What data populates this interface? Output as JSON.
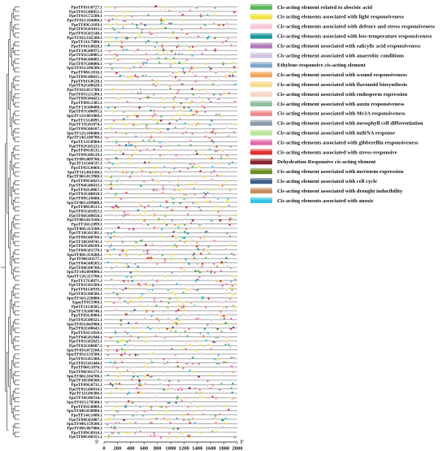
{
  "genes": [
    "PpeTF01G0727.1",
    "PpeTF01G08851.1",
    "PpeTF01G72500.1",
    "PpeTF01G104000.1",
    "PpeTF09G1109.1",
    "PpeTF03G03413.1",
    "PpeTF03G01548.1",
    "PpeTF01G145500.1",
    "PpeTF11G7800.1",
    "PpeTF01G8028.1",
    "PpeTF14G00975.1",
    "PpeTF05G20005.1",
    "PpeTF04G00005.1",
    "PpeTF07G00006.1",
    "SpuTF01G186500.1",
    "PpeTF08G1816.1",
    "PpeTF09G00015.1",
    "PpeTF01G0520.1",
    "PpeTF02G00620.1",
    "PpeTF01G051700.1",
    "PpeTF01G21200.1",
    "PpeTF09G04423.1",
    "PpeTF09G1385.1",
    "PpeTF13G00088.1",
    "PpeTF07G00095.1",
    "SpuTF12G081000.1",
    "PpeTF15G0095.1",
    "PpeTF15G01074.1",
    "PpeTF09G00107.1",
    "SpuTF12G108400.1",
    "PpeTF14G108700.1",
    "PpeTF12G0904.1",
    "PpeTF02G05223.1",
    "PpeTF09G0131.1",
    "PpeTF09G00129.1",
    "SpuTF09G009700.1",
    "PpeTF11G04537.1",
    "PpeTF05G0469.1",
    "SpuTF11G041100.1",
    "PpeTF06G013900.1",
    "PpeTF09G0423.1",
    "PpeTF04G00433.1",
    "PpeTF02G0067.1",
    "PpeTF03G00018.1",
    "PpeTF09G18600.1",
    "SpuTF06G189800.1",
    "PpeTF08G0513.1",
    "PpeTF05G01853.1",
    "PpeTF06G00658.1",
    "PpeTF06G013100.1",
    "PpeTF16G1099.1",
    "SpuTF06G113500.1",
    "PpeTF18G01301.1",
    "PpeTF06G00760.1",
    "PpeTF18G04741.1",
    "PpeTF03G00189.1",
    "PpeTF08G01578.1",
    "SpuTF06G114200.1",
    "PpeTF04G01177.1",
    "PpeTF04G00503.1",
    "PpeTF04G00708.1",
    "SpuTF14G094800.1",
    "SpuTF13G115700.1",
    "PpeTF17G0971.1",
    "PpeTF01G01204.1",
    "PpeTF01G0939.1",
    "PpeTF05G00586.1",
    "SpuTF16G220800.1",
    "SapuTF015900.1",
    "PpeTF11G0505.1",
    "PpeTF13G00740.1",
    "PpeTF03G0904.1",
    "PpeTF02G00321.1",
    "SpuTF05G043900.1",
    "PpeTF02G00643.1",
    "PpeTF03G1050.1",
    "PpeTF04G01840.1",
    "PpeTF05G02025.1",
    "PpeTF02G00687.1",
    "SpuTF03G072100.1",
    "SpuTF05G133500.1",
    "PpeTF01G01308.1",
    "PpeTF01G01444.1",
    "PpeTF06G1076.1",
    "PpeTF06G01271.1",
    "SpuTF06G104700.1",
    "PpeTF16G08500.1",
    "PpeTF09G0731.1",
    "PpeTF01G06814.1",
    "PpeTF11G06306.1",
    "SpuTF10G00334.1",
    "SpuTF01G178500.1",
    "PpeTF03G0809.1",
    "SpuTF04G038800.1",
    "PpeTF14G1680.1",
    "PpeTF04G02087.1",
    "SpuTF04G159500.1",
    "PpeTF09G007000.1",
    "PpeTF09G0914.1",
    "PpeTF08G00355.1"
  ],
  "axis": {
    "ticks": [
      "0",
      "200",
      "400",
      "600",
      "800",
      "1000",
      "1200",
      "1400",
      "1600",
      "1800",
      "2000"
    ],
    "start_label": "5'",
    "end_label": "3'",
    "max": 2000
  },
  "legend": [
    {
      "pre": "",
      "it": "Cis",
      "post": "-acting element related to abscisic acid",
      "color": "#5cb85c"
    },
    {
      "pre": "",
      "it": "Cis",
      "post": "-acting elements associated with light responsiveness",
      "color": "#f0e442"
    },
    {
      "pre": "",
      "it": "Cis",
      "post": "-acting elements associated with defence and stress responsiveness",
      "color": "#f7c6da"
    },
    {
      "pre": "",
      "it": "Cis",
      "post": "-acting elements associated with low-temperature responsiveness",
      "color": "#1a9a9a"
    },
    {
      "pre": "",
      "it": "Cis",
      "post": "-acting element associated with salicylic acid responsiveness",
      "color": "#b07ab8"
    },
    {
      "pre": "",
      "it": "Cis",
      "post": "-acting element associated with anaerobic conditions",
      "color": "#cfc5e3"
    },
    {
      "pre": "Ethylene-responsive ",
      "it": "cis",
      "post": "-acting element",
      "color": "#7ea6c9"
    },
    {
      "pre": "",
      "it": "Cis",
      "post": "-acting element associated with wound responsiveness",
      "color": "#f2a65a"
    },
    {
      "pre": "",
      "it": "Cis",
      "post": "-acting element associated with flavonoid biosynthesis",
      "color": "#f6dd8a"
    },
    {
      "pre": "",
      "it": "Cis",
      "post": "-acting element associated with endosperm expression",
      "color": "#f8d7c5"
    },
    {
      "pre": "",
      "it": "Cis",
      "post": "-acting element associated with auxin responsiveness",
      "color": "#8fbf9f"
    },
    {
      "pre": "",
      "it": "Cis",
      "post": "-acting element associated with MeJA responsiveness",
      "color": "#ef8a8a"
    },
    {
      "pre": "",
      "it": "Cis",
      "post": "-acting element associated with mesophyll cell differentiation",
      "color": "#8a98a8"
    },
    {
      "pre": "",
      "it": "Cis",
      "post": "-acting element associated with miRNA response",
      "color": "#b8e39a"
    },
    {
      "pre": "",
      "it": "Cis",
      "post": "-acting elements associated with gibberellin responsiveness",
      "color": "#e46aa8"
    },
    {
      "pre": "",
      "it": "Cis",
      "post": "-acting elements associated with stress-responsive",
      "color": "#e0302f"
    },
    {
      "pre": "Dehydration-Responsive ",
      "it": "cis",
      "post": "-acting element",
      "color": "#8b2332"
    },
    {
      "pre": "",
      "it": "Cis",
      "post": "-acting element associated with meristem expression",
      "color": "#6b8e23"
    },
    {
      "pre": "",
      "it": "Cis",
      "post": "-acting element associated with cell cycle",
      "color": "#3f5f8a"
    },
    {
      "pre": "",
      "it": "Cis",
      "post": "-acting element associated with drought inducibility",
      "color": "#c98c5a"
    },
    {
      "pre": "",
      "it": "Cis",
      "post": "-acting elements associated with anoxic",
      "color": "#34c3e8"
    }
  ]
}
